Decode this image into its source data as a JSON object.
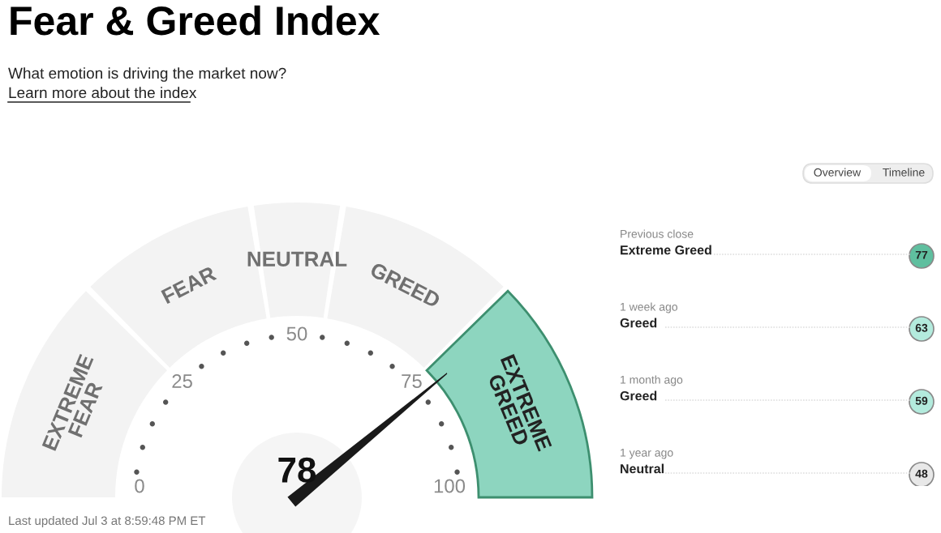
{
  "chart_data": [
    {
      "type": "donut",
      "title": "Fear & Greed Index",
      "subtitle": "What emotion is driving the market now?",
      "categories": [
        "EXTREME FEAR",
        "FEAR",
        "NEUTRAL",
        "GREED",
        "EXTREME GREED"
      ],
      "values": [
        25,
        20,
        10,
        20,
        25
      ],
      "colors": [
        "#f3f3f3",
        "#f3f3f3",
        "#f3f3f3",
        "#f3f3f3",
        "#8dd5bf"
      ],
      "needle": "EXTREME GREED",
      "annotations": [
        "78",
        "0",
        "25",
        "50",
        "75",
        "100",
        "Learn more about the index",
        "Last updated Jul 3 at 8:59:48 PM ET"
      ]
    },
    {
      "type": "other",
      "categories": [
        "Previous close",
        "1 week ago",
        "1 month ago",
        "1 year ago"
      ],
      "values": [
        77,
        63,
        59,
        48
      ],
      "colors": [
        "#5fbf9f",
        "#b3ebdd",
        "#b3ebdd",
        "#e8e8e8"
      ],
      "data_labels": true,
      "annotations": [
        "Extreme Greed",
        "Greed",
        "Greed",
        "Neutral",
        "Overview",
        "Timeline"
      ]
    }
  ]
}
